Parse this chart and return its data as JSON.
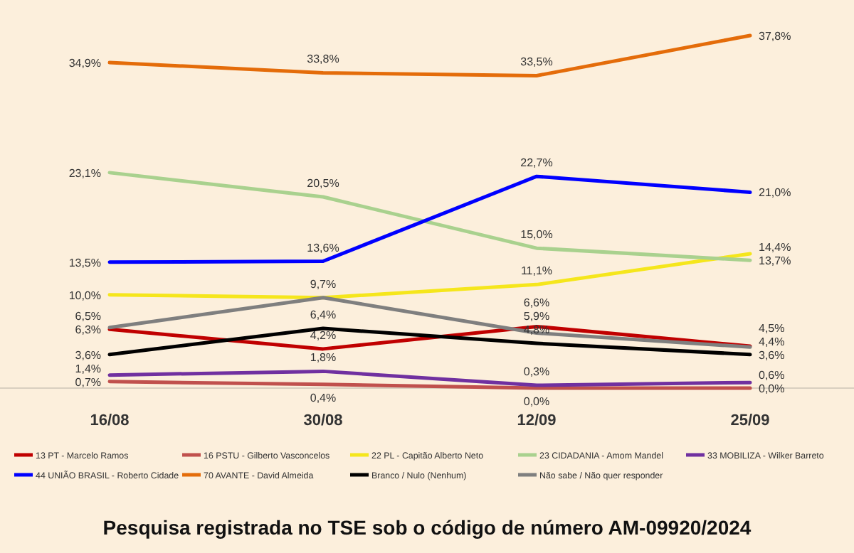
{
  "chart_data": {
    "type": "line",
    "categories": [
      "16/08",
      "30/08",
      "12/09",
      "25/09"
    ],
    "series": [
      {
        "name": "13 PT - Marcelo Ramos",
        "color": "#c00000",
        "values": [
          6.3,
          4.2,
          6.6,
          4.5
        ],
        "value_labels": [
          "6,3%",
          "4,2%",
          "6,6%",
          "4,5%"
        ]
      },
      {
        "name": "16 PSTU - Gilberto Vasconcelos",
        "color": "#c0504d",
        "values": [
          0.7,
          0.4,
          0.0,
          0.0
        ],
        "value_labels": [
          "0,7%",
          "0,4%",
          "0,0%",
          "0,0%"
        ]
      },
      {
        "name": "22 PL - Capitão Alberto Neto",
        "color": "#f5e61c",
        "values": [
          10.0,
          9.7,
          11.1,
          14.4
        ],
        "value_labels": [
          "10,0%",
          "9,7%",
          "11,1%",
          "14,4%"
        ]
      },
      {
        "name": "23 CIDADANIA - Amom Mandel",
        "color": "#a9d18e",
        "values": [
          23.1,
          20.5,
          15.0,
          13.7
        ],
        "value_labels": [
          "23,1%",
          "20,5%",
          "15,0%",
          "13,7%"
        ]
      },
      {
        "name": "33 MOBILIZA - Wilker Barreto",
        "color": "#7030a0",
        "values": [
          1.4,
          1.8,
          0.3,
          0.6
        ],
        "value_labels": [
          "1,4%",
          "1,8%",
          "0,3%",
          "0,6%"
        ]
      },
      {
        "name": "44 UNIÃO BRASIL - Roberto Cidade",
        "color": "#0000ff",
        "values": [
          13.5,
          13.6,
          22.7,
          21.0
        ],
        "value_labels": [
          "13,5%",
          "13,6%",
          "22,7%",
          "21,0%"
        ]
      },
      {
        "name": "70 AVANTE - David Almeida",
        "color": "#e46c0a",
        "values": [
          34.9,
          33.8,
          33.5,
          37.8
        ],
        "value_labels": [
          "34,9%",
          "33,8%",
          "33,5%",
          "37,8%"
        ]
      },
      {
        "name": "Branco / Nulo (Nenhum)",
        "color": "#000000",
        "values": [
          3.6,
          6.4,
          4.8,
          3.6
        ],
        "value_labels": [
          "3,6%",
          "6,4%",
          "4,8%",
          "3,6%"
        ]
      },
      {
        "name": "Não sabe / Não quer responder",
        "color": "#7f7f7f",
        "values": [
          6.5,
          9.7,
          5.9,
          4.4
        ],
        "value_labels": [
          "6,5%",
          null,
          "5,9%",
          "4,4%"
        ]
      }
    ],
    "legend": "bottom",
    "marker": "none",
    "line_style": "solid",
    "grid": false,
    "annotations": [
      "Pesquisa registrada no TSE sob o código de número AM-09920/2024"
    ]
  }
}
